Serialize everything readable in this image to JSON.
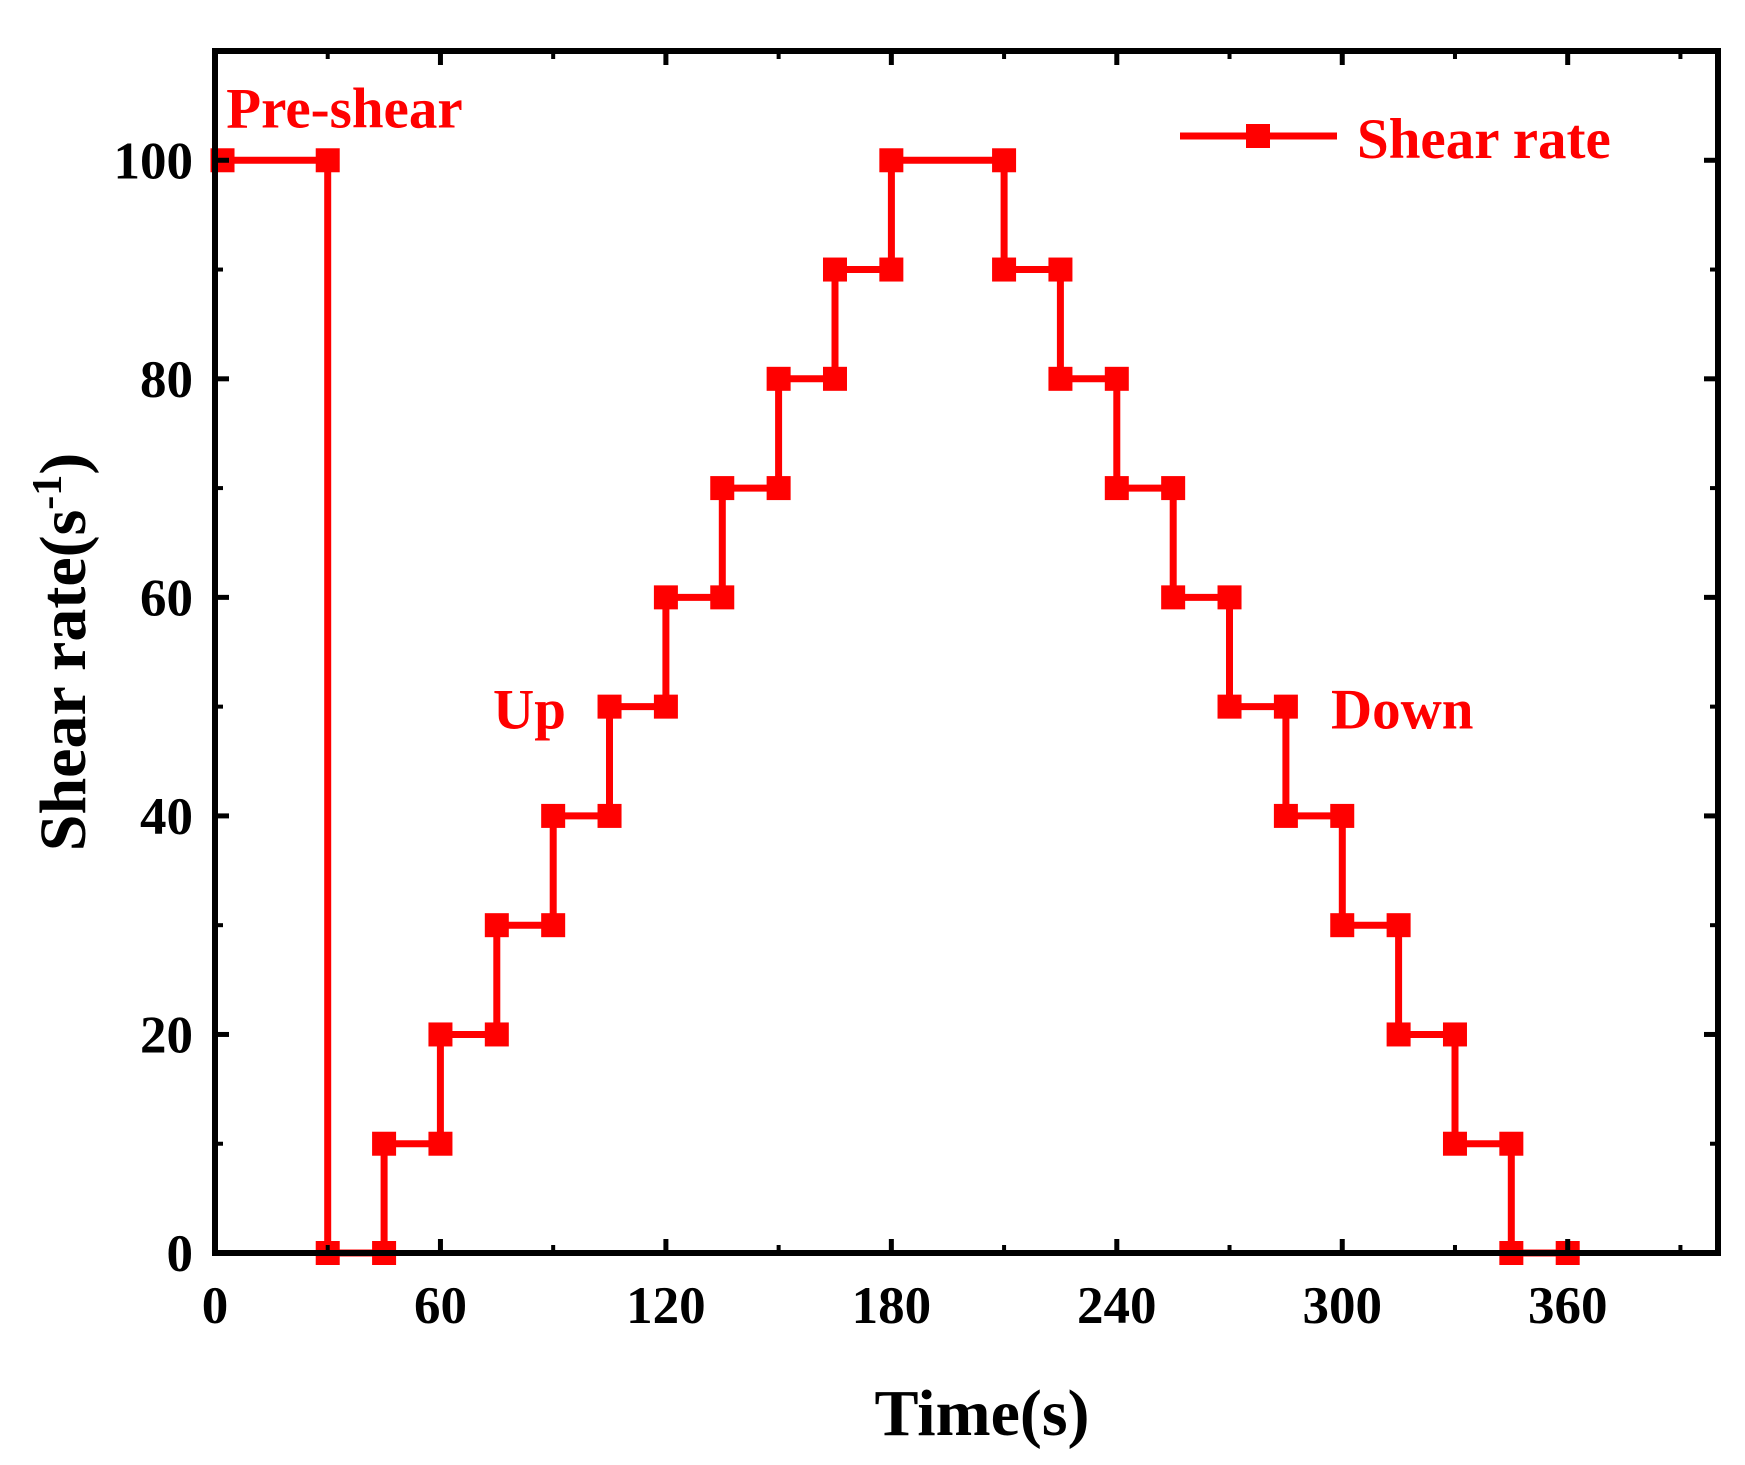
{
  "colors": {
    "series": "#ff0000",
    "axis": "#000000",
    "background": "#ffffff"
  },
  "chart_data": {
    "type": "line",
    "title": "",
    "xlabel": "Time(s)",
    "ylabel_main": "Shear rate(s",
    "ylabel_sup": "-1",
    "ylabel_close": ")",
    "xlim": [
      0,
      400
    ],
    "ylim": [
      0,
      110
    ],
    "xticks": [
      0,
      60,
      120,
      180,
      240,
      300,
      360
    ],
    "xminor": [
      30,
      90,
      150,
      210,
      270,
      330,
      390
    ],
    "yticks": [
      0,
      20,
      40,
      60,
      80,
      100
    ],
    "yminor": [
      10,
      30,
      50,
      70,
      90
    ],
    "grid": false,
    "legend_position": "top-right",
    "series": [
      {
        "name": "Shear rate",
        "x": [
          2,
          30,
          30,
          45,
          45,
          60,
          60,
          75,
          75,
          90,
          90,
          105,
          105,
          120,
          120,
          135,
          135,
          150,
          150,
          165,
          165,
          180,
          180,
          210,
          210,
          225,
          225,
          240,
          240,
          255,
          255,
          270,
          270,
          285,
          285,
          300,
          300,
          315,
          315,
          330,
          330,
          345,
          345,
          360
        ],
        "y": [
          100,
          100,
          0,
          0,
          10,
          10,
          20,
          20,
          30,
          30,
          40,
          40,
          50,
          50,
          60,
          60,
          70,
          70,
          80,
          80,
          90,
          90,
          100,
          100,
          90,
          90,
          80,
          80,
          70,
          70,
          60,
          60,
          50,
          50,
          40,
          40,
          30,
          30,
          20,
          20,
          10,
          10,
          0,
          0
        ]
      }
    ],
    "annotations": [
      {
        "text": "Pre-shear",
        "x": 3,
        "y": 103,
        "anchor": "start"
      },
      {
        "text": "Up",
        "x": 74,
        "y": 48,
        "anchor": "start"
      },
      {
        "text": "Down",
        "x": 297,
        "y": 48,
        "anchor": "start"
      }
    ]
  }
}
